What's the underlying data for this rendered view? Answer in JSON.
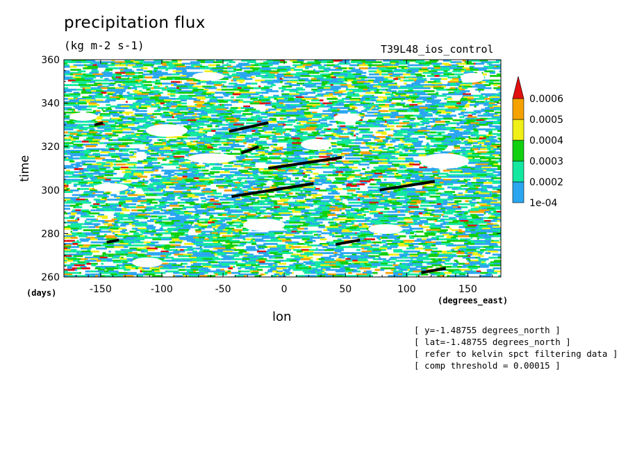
{
  "chart_data": {
    "type": "heatmap",
    "title": "precipitation flux",
    "units": "(kg m-2 s-1)",
    "experiment": "T39L48_ios_control",
    "xlabel": "lon",
    "xunits": "(degrees_east)",
    "ylabel": "time",
    "yunits": "(days)",
    "xlim": [
      -180,
      177
    ],
    "ylim": [
      260,
      360
    ],
    "xticks": [
      -150,
      -100,
      -50,
      0,
      50,
      100,
      150
    ],
    "yticks": [
      260,
      280,
      300,
      320,
      340,
      360
    ],
    "colorbar": {
      "levels": [
        "1e-04",
        "0.0002",
        "0.0003",
        "0.0004",
        "0.0005",
        "0.0006"
      ],
      "colors": [
        "#2aa6f0",
        "#12e8a0",
        "#10d010",
        "#f0f018",
        "#f5a200",
        "#e01010"
      ]
    },
    "tracks": [
      {
        "lon": [
          -155,
          -148
        ],
        "time": [
          330,
          331
        ]
      },
      {
        "lon": [
          -45,
          -13
        ],
        "time": [
          327,
          331
        ]
      },
      {
        "lon": [
          -35,
          -21
        ],
        "time": [
          317,
          320
        ]
      },
      {
        "lon": [
          -13,
          47
        ],
        "time": [
          310,
          315
        ]
      },
      {
        "lon": [
          -43,
          24
        ],
        "time": [
          297,
          303
        ]
      },
      {
        "lon": [
          78,
          123
        ],
        "time": [
          300,
          304
        ]
      },
      {
        "lon": [
          -145,
          -135
        ],
        "time": [
          276,
          277
        ]
      },
      {
        "lon": [
          42,
          62
        ],
        "time": [
          275,
          277
        ]
      },
      {
        "lon": [
          112,
          132
        ],
        "time": [
          262,
          264
        ]
      }
    ],
    "notes": [
      "[ y=-1.48755 degrees_north ]",
      "[ lat=-1.48755 degrees_north ]",
      "[ refer to kelvin spct filtering data ]",
      "[ comp threshold = 0.00015 ]"
    ]
  }
}
